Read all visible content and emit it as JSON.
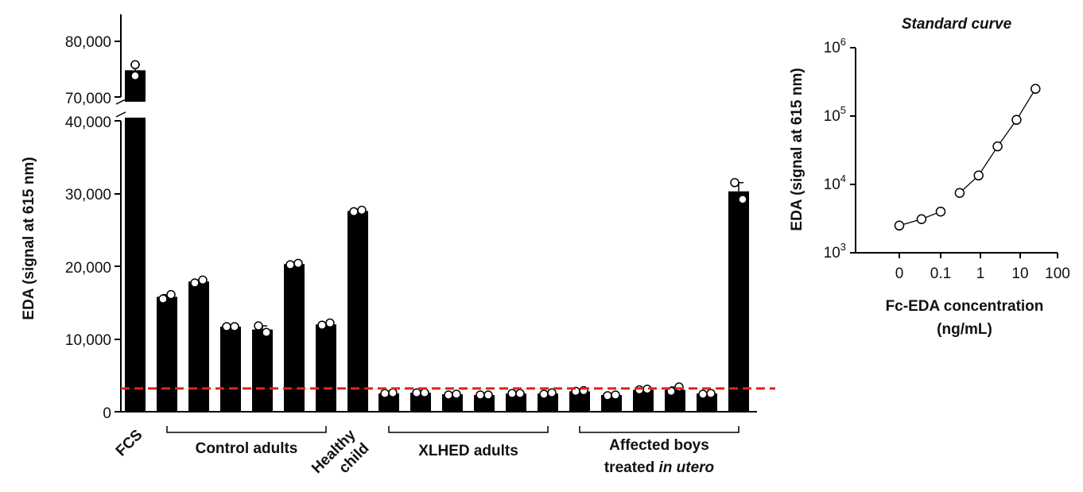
{
  "chart_data": [
    {
      "type": "bar",
      "title": "",
      "ylabel": "EDA (signal at 615 nm)",
      "y_axis_break": {
        "lower_range": [
          0,
          40000
        ],
        "upper_range": [
          70000,
          80000
        ]
      },
      "yticks_lower": [
        "0",
        "10,000",
        "20,000",
        "30,000",
        "40,000"
      ],
      "yticks_upper": [
        "70,000",
        "80,000"
      ],
      "threshold_line": {
        "value": 3200,
        "color": "#e8201e",
        "style": "dashed"
      },
      "bar_color": "#000000",
      "bars": [
        {
          "group": "FCS",
          "value": 74800,
          "points": [
            75800,
            73800
          ]
        },
        {
          "group": "Control adults",
          "value": 15800,
          "points": [
            15500,
            16100
          ]
        },
        {
          "group": "Control adults",
          "value": 17900,
          "points": [
            17700,
            18100
          ]
        },
        {
          "group": "Control adults",
          "value": 11700,
          "points": [
            11700,
            11700
          ]
        },
        {
          "group": "Control adults",
          "value": 11300,
          "points": [
            11800,
            10900
          ]
        },
        {
          "group": "Control adults",
          "value": 20300,
          "points": [
            20200,
            20400
          ]
        },
        {
          "group": "Control adults",
          "value": 12000,
          "points": [
            11900,
            12200
          ]
        },
        {
          "group": "Healthy child",
          "value": 27600,
          "points": [
            27500,
            27700
          ]
        },
        {
          "group": "XLHED adults",
          "value": 2500,
          "points": [
            2500,
            2600
          ]
        },
        {
          "group": "XLHED adults",
          "value": 2600,
          "points": [
            2600,
            2600
          ]
        },
        {
          "group": "XLHED adults",
          "value": 2400,
          "points": [
            2300,
            2400
          ]
        },
        {
          "group": "XLHED adults",
          "value": 2300,
          "points": [
            2300,
            2300
          ]
        },
        {
          "group": "XLHED adults",
          "value": 2500,
          "points": [
            2500,
            2500
          ]
        },
        {
          "group": "XLHED adults",
          "value": 2500,
          "points": [
            2400,
            2600
          ]
        },
        {
          "group": "Affected boys treated in utero",
          "value": 2800,
          "points": [
            2800,
            2900
          ]
        },
        {
          "group": "Affected boys treated in utero",
          "value": 2300,
          "points": [
            2200,
            2300
          ]
        },
        {
          "group": "Affected boys treated in utero",
          "value": 3000,
          "points": [
            3000,
            3100
          ]
        },
        {
          "group": "Affected boys treated in utero",
          "value": 3000,
          "points": [
            2800,
            3400
          ]
        },
        {
          "group": "Affected boys treated in utero",
          "value": 2500,
          "points": [
            2400,
            2500
          ]
        },
        {
          "group": "",
          "value": 30300,
          "points": [
            31500,
            29200
          ]
        }
      ],
      "group_labels": {
        "fcs": "FCS",
        "control": "Control adults",
        "healthy_line1": "Healthy",
        "healthy_line2": "child",
        "xlhed": "XLHED adults",
        "boys_line1": "Affected boys",
        "boys_line2_prefix": "treated ",
        "boys_line2_italic": "in utero"
      }
    },
    {
      "type": "line",
      "title": "Standard curve",
      "xlabel_line1": "Fc-EDA concentration",
      "xlabel_line2": "(ng/mL)",
      "ylabel": "EDA (signal at 615 nm)",
      "y_scale": "log",
      "ylim": [
        1000,
        1000000
      ],
      "y_tick_exponents": [
        "3",
        "4",
        "5",
        "6"
      ],
      "x_tick_labels": [
        "0",
        "0.1",
        "1",
        "10",
        "100"
      ],
      "segments": [
        [
          {
            "x": 0,
            "y": 2500
          },
          {
            "x": 0.033,
            "y": 3100
          },
          {
            "x": 0.1,
            "y": 4000
          }
        ],
        [
          {
            "x": 0.3,
            "y": 7500
          },
          {
            "x": 0.9,
            "y": 13500
          },
          {
            "x": 2.7,
            "y": 36000
          },
          {
            "x": 8.1,
            "y": 88000
          },
          {
            "x": 24.3,
            "y": 250000
          }
        ]
      ]
    }
  ]
}
